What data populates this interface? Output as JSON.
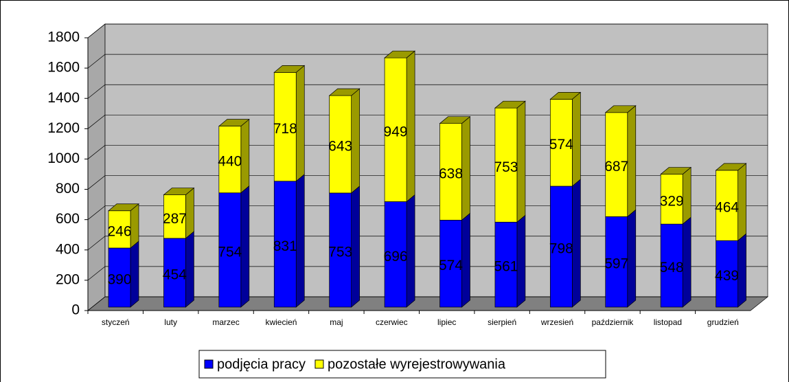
{
  "chart_data": {
    "type": "stacked-bar-3d",
    "categories": [
      "styczeń",
      "luty",
      "marzec",
      "kwiecień",
      "maj",
      "czerwiec",
      "lipiec",
      "sierpień",
      "wrzesień",
      "październik",
      "listopad",
      "grudzień"
    ],
    "series": [
      {
        "name": "podjęcia pracy",
        "color": "#0000ff",
        "side": "#00009a",
        "values": [
          390,
          454,
          754,
          831,
          753,
          696,
          574,
          561,
          798,
          597,
          548,
          439
        ]
      },
      {
        "name": "pozostałe wyrejestrowywania",
        "color": "#ffff00",
        "side": "#9a9a00",
        "values": [
          246,
          287,
          440,
          718,
          643,
          949,
          638,
          753,
          574,
          687,
          329,
          464
        ]
      }
    ],
    "ylim": [
      0,
      1800
    ],
    "yticks": [
      0,
      200,
      400,
      600,
      800,
      1000,
      1200,
      1400,
      1600,
      1800
    ],
    "grid": true,
    "legend": "bottom"
  }
}
